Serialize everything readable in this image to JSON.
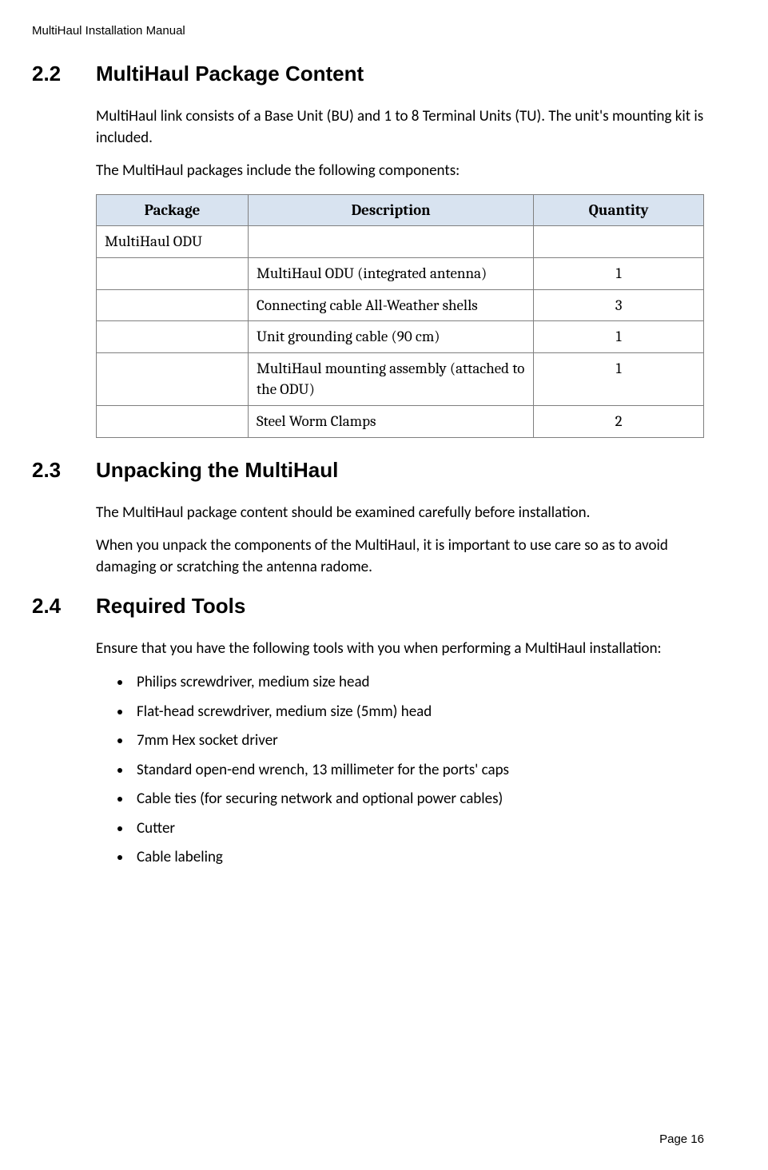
{
  "header": {
    "text": "MultiHaul Installation Manual"
  },
  "sections": {
    "s22": {
      "number": "2.2",
      "title": "MultiHaul Package Content",
      "para1": "MultiHaul link consists of a Base Unit (BU) and 1 to 8 Terminal Units (TU). The unit's mounting kit is included.",
      "para2": "The MultiHaul packages include the following components:"
    },
    "s23": {
      "number": "2.3",
      "title": "Unpacking the MultiHaul",
      "para1": "The MultiHaul package content should be examined carefully before installation.",
      "para2": "When you unpack the components of the MultiHaul, it is important to use care so as to avoid damaging or scratching the antenna radome."
    },
    "s24": {
      "number": "2.4",
      "title": "Required Tools",
      "para1": "Ensure that you have the following tools with you when performing a MultiHaul installation:"
    }
  },
  "package_table": {
    "headers": {
      "col1": "Package",
      "col2": "Description",
      "col3": "Quantity"
    },
    "rows": [
      {
        "package": "MultiHaul ODU",
        "description": "",
        "quantity": ""
      },
      {
        "package": "",
        "description": "MultiHaul ODU (integrated antenna)",
        "quantity": "1"
      },
      {
        "package": "",
        "description": "Connecting cable All-Weather shells",
        "quantity": "3"
      },
      {
        "package": "",
        "description": "Unit grounding cable (90 cm)",
        "quantity": "1"
      },
      {
        "package": "",
        "description": "MultiHaul mounting assembly (attached to the ODU)",
        "quantity": "1"
      },
      {
        "package": "",
        "description": "Steel Worm Clamps",
        "quantity": "2"
      }
    ]
  },
  "tools_list": {
    "items": [
      "Philips screwdriver, medium size head",
      "Flat-head screwdriver, medium size (5mm) head",
      "7mm Hex socket driver",
      "Standard open-end wrench, 13 millimeter for the ports' caps",
      "Cable ties (for securing network and optional power cables)",
      "Cutter",
      "Cable labeling"
    ]
  },
  "footer": {
    "text": "Page 16"
  }
}
